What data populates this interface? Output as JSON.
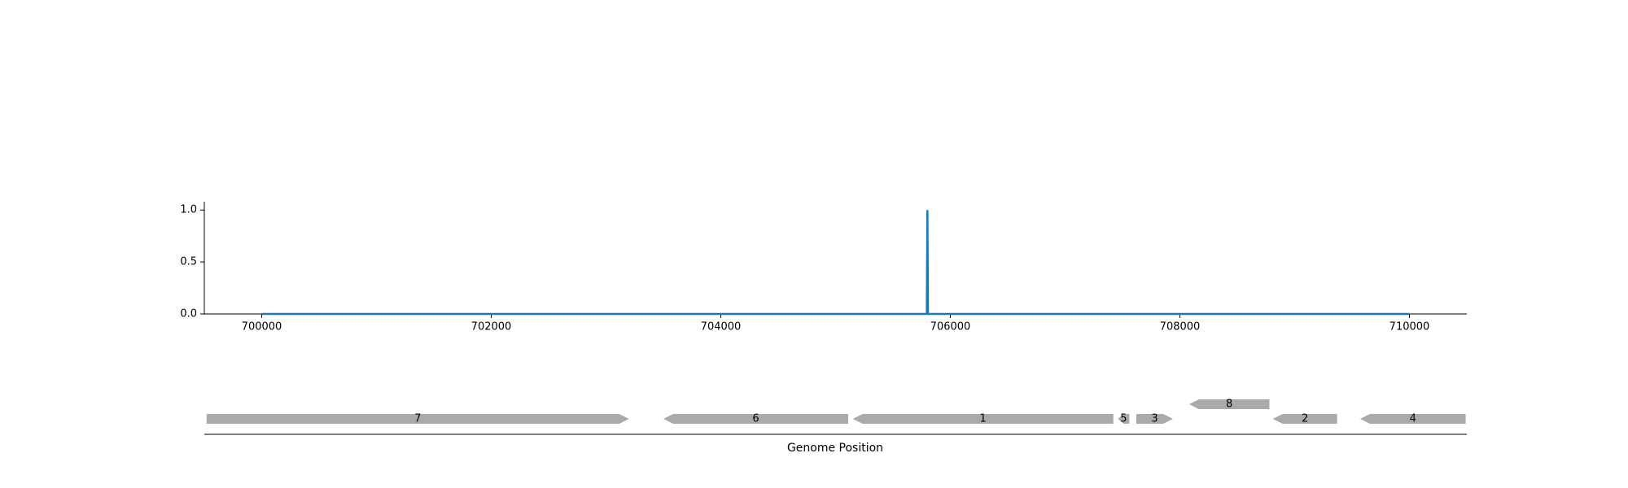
{
  "chart_data": [
    {
      "type": "line",
      "title": "",
      "xlabel": "",
      "ylabel": "",
      "xlim": [
        699500,
        710500
      ],
      "ylim": [
        0,
        1.08
      ],
      "x_ticks": [
        700000,
        702000,
        704000,
        706000,
        708000,
        710000
      ],
      "x_tick_labels": [
        "700000",
        "702000",
        "704000",
        "706000",
        "708000",
        "710000"
      ],
      "y_ticks": [
        0,
        0.5,
        1
      ],
      "y_tick_labels": [
        "0.0",
        "0.5",
        "1.0"
      ],
      "grid": false,
      "series": [
        {
          "color": "#1f77b4",
          "x": [
            700000,
            705795,
            705800,
            705805,
            710000
          ],
          "y": [
            0,
            0,
            1,
            0,
            0
          ]
        }
      ]
    },
    {
      "type": "gene_track",
      "xlabel": "Genome Position",
      "xlim": [
        699500,
        710500
      ],
      "gene_color": "#aaaaaa",
      "genes": [
        {
          "label": "7",
          "start": 699520,
          "end": 703200,
          "strand": "+",
          "row": 0
        },
        {
          "label": "6",
          "start": 703500,
          "end": 705110,
          "strand": "-",
          "row": 0
        },
        {
          "label": "1",
          "start": 705150,
          "end": 707420,
          "strand": "-",
          "row": 0
        },
        {
          "label": "5",
          "start": 707460,
          "end": 707560,
          "strand": "-",
          "row": 0
        },
        {
          "label": "3",
          "start": 707620,
          "end": 707940,
          "strand": "+",
          "row": 0
        },
        {
          "label": "8",
          "start": 708080,
          "end": 708780,
          "strand": "-",
          "row": 1
        },
        {
          "label": "2",
          "start": 708810,
          "end": 709370,
          "strand": "-",
          "row": 0
        },
        {
          "label": "4",
          "start": 709570,
          "end": 710490,
          "strand": "-",
          "row": 0
        }
      ]
    }
  ]
}
